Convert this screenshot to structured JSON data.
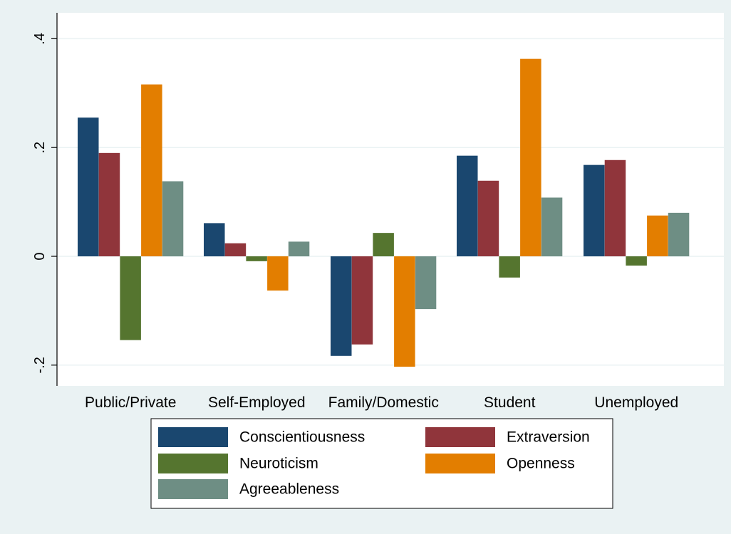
{
  "chart_data": {
    "type": "bar",
    "categories": [
      "Public/Private",
      "Self-Employed",
      "Family/Domestic",
      "Student",
      "Unemployed"
    ],
    "series": [
      {
        "name": "Conscientiousness",
        "color": "#1a476f",
        "values": [
          0.255,
          0.061,
          -0.183,
          0.185,
          0.168
        ]
      },
      {
        "name": "Extraversion",
        "color": "#90353b",
        "values": [
          0.19,
          0.024,
          -0.162,
          0.139,
          0.177
        ]
      },
      {
        "name": "Neuroticism",
        "color": "#55752f",
        "values": [
          -0.154,
          -0.009,
          0.043,
          -0.039,
          -0.017
        ]
      },
      {
        "name": "Openness",
        "color": "#e37e00",
        "values": [
          0.316,
          -0.063,
          -0.203,
          0.363,
          0.075
        ]
      },
      {
        "name": "Agreeableness",
        "color": "#6e8e84",
        "values": [
          0.138,
          0.027,
          -0.097,
          0.108,
          0.08
        ]
      }
    ],
    "yticks": [
      -0.2,
      0,
      0.2,
      0.4
    ],
    "ytick_labels": [
      "-.2",
      "0",
      ".2",
      ".4"
    ],
    "ylim": [
      -0.235,
      0.41
    ],
    "grid": true,
    "legend_position": "bottom",
    "colors": {
      "background": "#eaf2f3",
      "plot_area": "#ffffff",
      "gridline": "#eaf2f3"
    }
  }
}
